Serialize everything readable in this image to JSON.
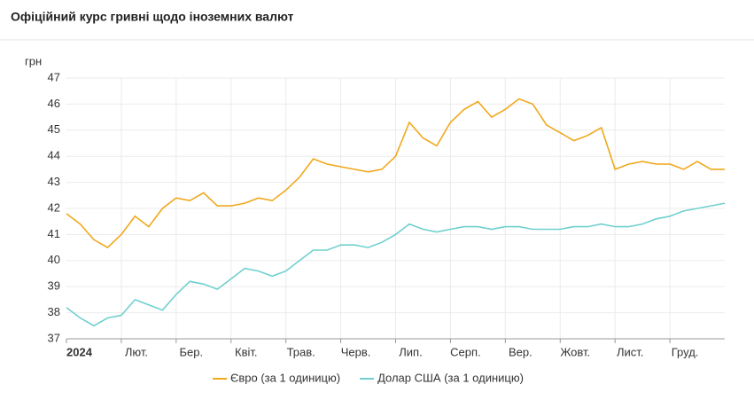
{
  "chart_data": {
    "type": "line",
    "title": "Офіційний курс гривні щодо іноземних валют",
    "y_label": "грн",
    "categories": [
      "2024",
      null,
      null,
      null,
      "Лют.",
      null,
      null,
      null,
      "Бер.",
      null,
      null,
      null,
      "Квіт.",
      null,
      null,
      null,
      "Трав.",
      null,
      null,
      null,
      "Черв.",
      null,
      null,
      null,
      "Лип.",
      null,
      null,
      null,
      "Серп.",
      null,
      null,
      null,
      "Вер.",
      null,
      null,
      null,
      "Жовт.",
      null,
      null,
      null,
      "Лист.",
      null,
      null,
      null,
      "Груд.",
      null,
      null,
      null,
      null
    ],
    "series": [
      {
        "name": "Євро (за 1 одиницю)",
        "color": "#f0a81c",
        "values": [
          41.8,
          41.4,
          40.8,
          40.5,
          41.0,
          41.7,
          41.3,
          42.0,
          42.4,
          42.3,
          42.6,
          42.1,
          42.1,
          42.2,
          42.4,
          42.3,
          42.7,
          43.2,
          43.9,
          43.7,
          43.6,
          43.5,
          43.4,
          43.5,
          44.0,
          45.3,
          44.7,
          44.4,
          45.3,
          45.8,
          46.1,
          45.5,
          45.8,
          46.2,
          46.0,
          45.2,
          44.9,
          44.6,
          44.8,
          45.1,
          43.5,
          43.7,
          43.8,
          43.7,
          43.7,
          43.5,
          43.8,
          43.5,
          43.5
        ]
      },
      {
        "name": "Долар США (за 1 одиницю)",
        "color": "#6fd0cf",
        "values": [
          38.2,
          37.8,
          37.5,
          37.8,
          37.9,
          38.5,
          38.3,
          38.1,
          38.7,
          39.2,
          39.1,
          38.9,
          39.3,
          39.7,
          39.6,
          39.4,
          39.6,
          40.0,
          40.4,
          40.4,
          40.6,
          40.6,
          40.5,
          40.7,
          41.0,
          41.4,
          41.2,
          41.1,
          41.2,
          41.3,
          41.3,
          41.2,
          41.3,
          41.3,
          41.2,
          41.2,
          41.2,
          41.3,
          41.3,
          41.4,
          41.3,
          41.3,
          41.4,
          41.6,
          41.7,
          41.9,
          42.0,
          42.1,
          42.2
        ]
      }
    ],
    "ylim": [
      37,
      47
    ],
    "yticks": [
      37,
      38,
      39,
      40,
      41,
      42,
      43,
      44,
      45,
      46,
      47
    ],
    "grid": true
  }
}
